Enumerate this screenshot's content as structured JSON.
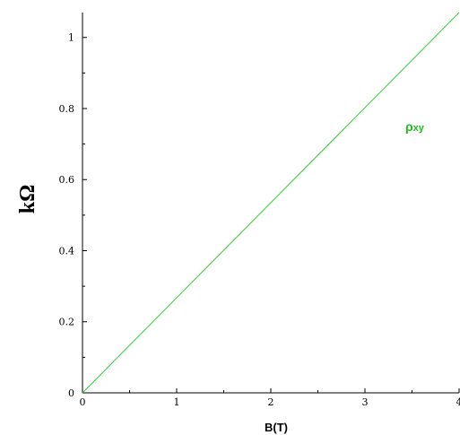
{
  "chart_data": {
    "type": "line",
    "title": "",
    "xlabel": "B(T)",
    "ylabel": "kΩ",
    "xlim": [
      0,
      4
    ],
    "ylim": [
      0,
      1.07
    ],
    "grid": false,
    "x_ticks": [
      0,
      1,
      2,
      3,
      4
    ],
    "x_tick_labels": [
      "0",
      "1",
      "2",
      "3",
      "4"
    ],
    "y_ticks": [
      0,
      0.2,
      0.4,
      0.6,
      0.8,
      1
    ],
    "y_tick_labels": [
      "0",
      "0.2",
      "0.4",
      "0.6",
      "0.8",
      "1"
    ],
    "series": [
      {
        "name": "ρxy",
        "color": "#33cc33",
        "x": [
          0,
          4
        ],
        "y": [
          0,
          1.07
        ]
      }
    ],
    "annotations": [
      {
        "text": "ρ",
        "subscript": "xy",
        "color": "#22bb22"
      }
    ]
  }
}
